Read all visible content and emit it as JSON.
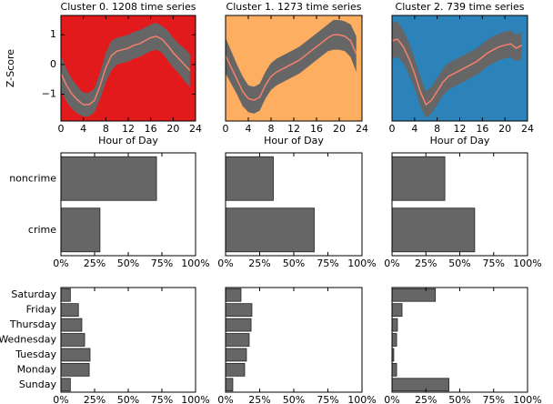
{
  "chart_data": [
    {
      "type": "line",
      "title": "Cluster 0. 1208 time series",
      "xlabel": "Hour of Day",
      "ylabel": "Z-Score",
      "background": "#e31a1c",
      "color": "#f4806b",
      "band_color": "#666666",
      "x": [
        0,
        1,
        2,
        3,
        4,
        5,
        6,
        7,
        8,
        9,
        10,
        11,
        12,
        13,
        14,
        15,
        16,
        17,
        18,
        19,
        20,
        21,
        22,
        23
      ],
      "values": [
        -0.3,
        -0.7,
        -1.0,
        -1.2,
        -1.35,
        -1.35,
        -1.2,
        -0.7,
        -0.1,
        0.3,
        0.45,
        0.5,
        0.55,
        0.65,
        0.7,
        0.8,
        0.9,
        0.95,
        0.85,
        0.65,
        0.4,
        0.2,
        0.0,
        -0.2
      ],
      "std": [
        0.6,
        0.55,
        0.5,
        0.45,
        0.4,
        0.4,
        0.4,
        0.45,
        0.5,
        0.5,
        0.45,
        0.45,
        0.45,
        0.45,
        0.45,
        0.45,
        0.45,
        0.45,
        0.45,
        0.5,
        0.5,
        0.5,
        0.55,
        0.55
      ],
      "xlim": [
        0,
        24
      ],
      "xticks": [
        0,
        4,
        8,
        12,
        16,
        20,
        24
      ],
      "ylim": [
        -1.9,
        1.65
      ],
      "yticks": [
        {
          "value": -1,
          "label": "−1"
        },
        0,
        1
      ]
    },
    {
      "type": "line",
      "title": "Cluster 1. 1273 time series",
      "xlabel": "Hour of Day",
      "background": "#fdae61",
      "color": "#f4806b",
      "band_color": "#666666",
      "x": [
        0,
        1,
        2,
        3,
        4,
        5,
        6,
        7,
        8,
        9,
        10,
        11,
        12,
        13,
        14,
        15,
        16,
        17,
        18,
        19,
        20,
        21,
        22,
        23
      ],
      "values": [
        0.3,
        -0.1,
        -0.5,
        -0.9,
        -1.15,
        -1.2,
        -1.1,
        -0.7,
        -0.4,
        -0.25,
        -0.15,
        -0.05,
        0.05,
        0.15,
        0.3,
        0.45,
        0.6,
        0.75,
        0.9,
        1.0,
        1.0,
        0.95,
        0.8,
        0.35
      ],
      "std": [
        0.6,
        0.55,
        0.5,
        0.5,
        0.45,
        0.45,
        0.45,
        0.45,
        0.45,
        0.45,
        0.45,
        0.45,
        0.45,
        0.45,
        0.45,
        0.45,
        0.45,
        0.45,
        0.45,
        0.5,
        0.5,
        0.5,
        0.55,
        0.6
      ],
      "xlim": [
        0,
        24
      ],
      "xticks": [
        0,
        4,
        8,
        12,
        16,
        20,
        24
      ],
      "ylim": [
        -1.9,
        1.65
      ]
    },
    {
      "type": "line",
      "title": "Cluster 2. 739 time series",
      "xlabel": "Hour of Day",
      "background": "#2b83ba",
      "color": "#f4806b",
      "band_color": "#666666",
      "x": [
        0,
        1,
        2,
        3,
        4,
        5,
        6,
        7,
        8,
        9,
        10,
        11,
        12,
        13,
        14,
        15,
        16,
        17,
        18,
        19,
        20,
        21,
        22,
        23
      ],
      "values": [
        0.8,
        0.85,
        0.6,
        0.2,
        -0.3,
        -0.9,
        -1.35,
        -1.2,
        -0.9,
        -0.6,
        -0.4,
        -0.3,
        -0.2,
        -0.1,
        0.0,
        0.1,
        0.25,
        0.4,
        0.5,
        0.6,
        0.65,
        0.7,
        0.55,
        0.65
      ],
      "std": [
        0.6,
        0.6,
        0.55,
        0.55,
        0.5,
        0.5,
        0.45,
        0.45,
        0.45,
        0.45,
        0.45,
        0.45,
        0.45,
        0.45,
        0.45,
        0.45,
        0.45,
        0.45,
        0.45,
        0.45,
        0.45,
        0.45,
        0.45,
        0.45
      ],
      "xlim": [
        0,
        24
      ],
      "xticks": [
        0,
        4,
        8,
        12,
        16,
        20,
        24
      ],
      "ylim": [
        -1.9,
        1.65
      ]
    },
    {
      "type": "hbar",
      "categories": [
        "crime",
        "noncrime"
      ],
      "values": [
        29,
        71
      ],
      "color": "#666666",
      "xlim": [
        0,
        100
      ],
      "xticks": [
        {
          "value": 0,
          "label": "0%"
        },
        {
          "value": 25,
          "label": "25%"
        },
        {
          "value": 50,
          "label": "50%"
        },
        {
          "value": 75,
          "label": "75%"
        },
        {
          "value": 100,
          "label": "100%"
        }
      ]
    },
    {
      "type": "hbar",
      "values": [
        65,
        35
      ],
      "color": "#666666",
      "xlim": [
        0,
        100
      ],
      "xticks": [
        {
          "value": 0,
          "label": "0%"
        },
        {
          "value": 25,
          "label": "25%"
        },
        {
          "value": 50,
          "label": "50%"
        },
        {
          "value": 75,
          "label": "75%"
        },
        {
          "value": 100,
          "label": "100%"
        }
      ]
    },
    {
      "type": "hbar",
      "values": [
        61,
        39
      ],
      "color": "#666666",
      "xlim": [
        0,
        100
      ],
      "xticks": [
        {
          "value": 0,
          "label": "0%"
        },
        {
          "value": 25,
          "label": "25%"
        },
        {
          "value": 50,
          "label": "50%"
        },
        {
          "value": 75,
          "label": "75%"
        },
        {
          "value": 100,
          "label": "100%"
        }
      ]
    },
    {
      "type": "hbar",
      "categories": [
        "Sunday",
        "Monday",
        "Tuesday",
        "Wednesday",
        "Thursday",
        "Friday",
        "Saturday"
      ],
      "values": [
        7,
        21,
        21.6,
        17.6,
        15.5,
        13,
        7
      ],
      "color": "#666666",
      "xlim": [
        0,
        100
      ],
      "xticks": [
        {
          "value": 0,
          "label": "0%"
        },
        {
          "value": 25,
          "label": "25%"
        },
        {
          "value": 50,
          "label": "50%"
        },
        {
          "value": 75,
          "label": "75%"
        },
        {
          "value": 100,
          "label": "100%"
        }
      ]
    },
    {
      "type": "hbar",
      "values": [
        5.3,
        14,
        15.3,
        17.3,
        18.7,
        19.3,
        11.3
      ],
      "color": "#666666",
      "xlim": [
        0,
        100
      ],
      "xticks": [
        {
          "value": 0,
          "label": "0%"
        },
        {
          "value": 25,
          "label": "25%"
        },
        {
          "value": 50,
          "label": "50%"
        },
        {
          "value": 75,
          "label": "75%"
        },
        {
          "value": 100,
          "label": "100%"
        }
      ]
    },
    {
      "type": "hbar",
      "values": [
        42,
        3.4,
        1.3,
        3.4,
        4,
        7.4,
        32
      ],
      "color": "#666666",
      "xlim": [
        0,
        100
      ],
      "xticks": [
        {
          "value": 0,
          "label": "0%"
        },
        {
          "value": 25,
          "label": "25%"
        },
        {
          "value": 50,
          "label": "50%"
        },
        {
          "value": 75,
          "label": "75%"
        },
        {
          "value": 100,
          "label": "100%"
        }
      ]
    }
  ]
}
